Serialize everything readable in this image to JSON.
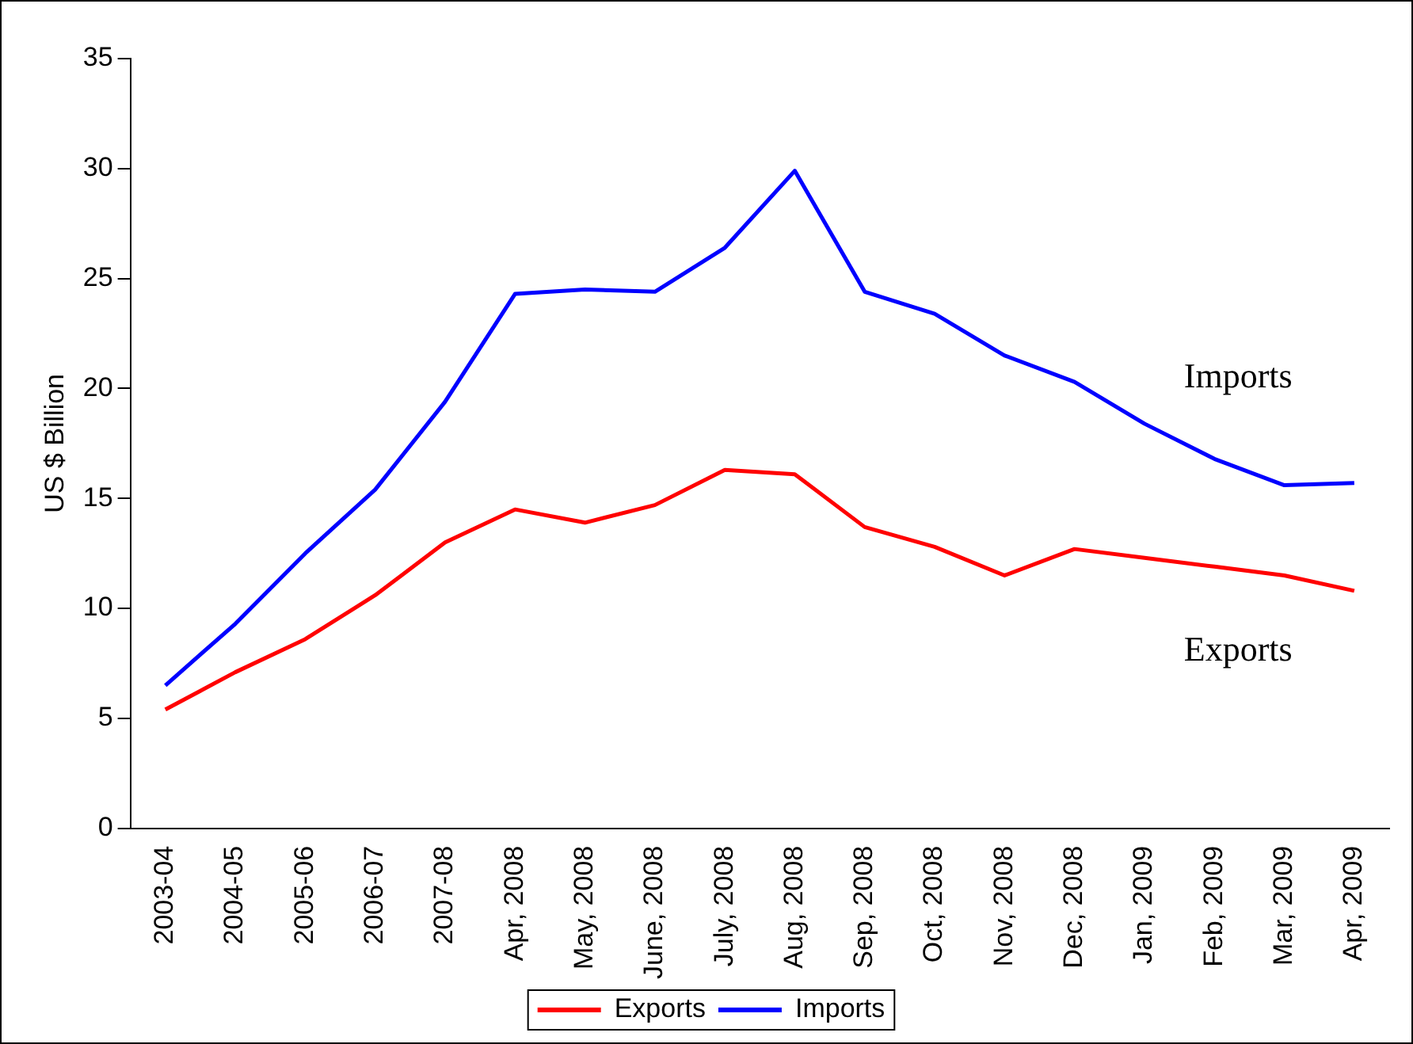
{
  "chart_data": {
    "type": "line",
    "ylabel": "US $ Billion",
    "categories": [
      "2003-04",
      "2004-05",
      "2005-06",
      "2006-07",
      "2007-08",
      "Apr, 2008",
      "May, 2008",
      "June, 2008",
      "July, 2008",
      "Aug, 2008",
      "Sep, 2008",
      "Oct, 2008",
      "Nov, 2008",
      "Dec, 2008",
      "Jan, 2009",
      "Feb, 2009",
      "Mar, 2009",
      "Apr, 2009"
    ],
    "series": [
      {
        "name": "Exports",
        "color": "#ff0000",
        "values": [
          5.4,
          7.1,
          8.6,
          10.6,
          13.0,
          14.5,
          13.9,
          14.7,
          16.3,
          16.1,
          13.7,
          12.8,
          11.5,
          12.7,
          12.3,
          11.9,
          11.5,
          10.8
        ]
      },
      {
        "name": "Imports",
        "color": "#0000ff",
        "values": [
          6.5,
          9.3,
          12.5,
          15.4,
          19.4,
          24.3,
          24.5,
          24.4,
          26.4,
          29.9,
          24.4,
          23.4,
          21.5,
          20.3,
          18.4,
          16.8,
          15.6,
          15.7
        ]
      }
    ],
    "ylim": [
      0,
      35
    ],
    "yticks": [
      0,
      5,
      10,
      15,
      20,
      25,
      30,
      35
    ],
    "grid": false,
    "legend": "bottom",
    "marker": "none",
    "line_style": "solid",
    "annotations": [
      "Imports",
      "Exports"
    ]
  }
}
